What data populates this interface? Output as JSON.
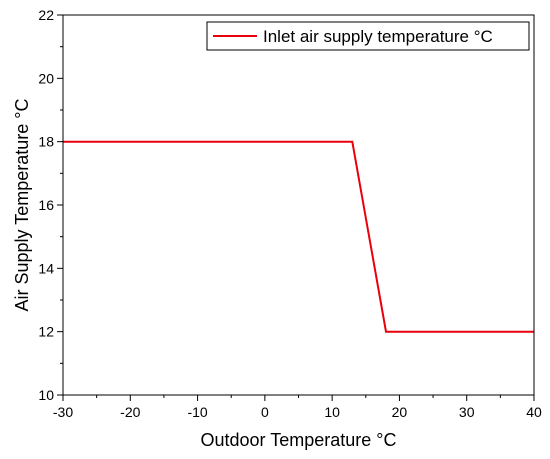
{
  "chart_data": {
    "type": "line",
    "title": "",
    "xlabel": "Outdoor Temperature °C",
    "ylabel": "Air Supply Temperature °C",
    "xlim": [
      -30,
      40
    ],
    "ylim": [
      10,
      22
    ],
    "xticks": [
      -30,
      -20,
      -10,
      0,
      10,
      20,
      30,
      40
    ],
    "yticks": [
      10,
      12,
      14,
      16,
      18,
      20,
      22
    ],
    "grid": false,
    "legend_position": "top-right",
    "series": [
      {
        "name": "Inlet air supply temperature °C",
        "color": "#e8000b",
        "x": [
          -30,
          13,
          18,
          40
        ],
        "y": [
          18,
          18,
          12,
          12
        ]
      }
    ]
  }
}
